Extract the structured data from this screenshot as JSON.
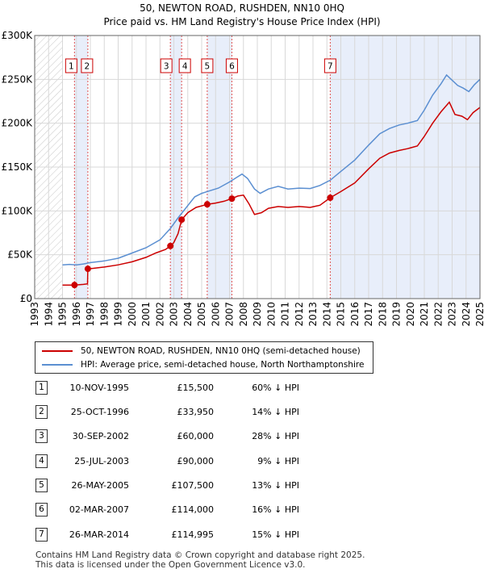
{
  "chart_data": {
    "type": "line",
    "title": "50, NEWTON ROAD, RUSHDEN, NN10 0HQ",
    "subtitle": "Price paid vs. HM Land Registry's House Price Index (HPI)",
    "xlabel": "",
    "ylabel": "",
    "xlim": [
      1993,
      2025
    ],
    "ylim": [
      0,
      300000
    ],
    "y_ticks": [
      0,
      50000,
      100000,
      150000,
      200000,
      250000,
      300000
    ],
    "y_tick_labels": [
      "£0",
      "£50K",
      "£100K",
      "£150K",
      "£200K",
      "£250K",
      "£300K"
    ],
    "x_ticks": [
      1993,
      1994,
      1995,
      1996,
      1997,
      1998,
      1999,
      2000,
      2001,
      2002,
      2003,
      2004,
      2005,
      2006,
      2007,
      2008,
      2009,
      2010,
      2011,
      2012,
      2013,
      2014,
      2015,
      2016,
      2017,
      2018,
      2019,
      2020,
      2021,
      2022,
      2023,
      2024,
      2025
    ],
    "x_tick_labels": [
      "1993",
      "1994",
      "1995",
      "1996",
      "1997",
      "1998",
      "1999",
      "2000",
      "2001",
      "2002",
      "2003",
      "2004",
      "2005",
      "2006",
      "2007",
      "2008",
      "2009",
      "2010",
      "2011",
      "2012",
      "2013",
      "2014",
      "2015",
      "2016",
      "2017",
      "2018",
      "2019",
      "2020",
      "2021",
      "2022",
      "2023",
      "2024",
      "2025"
    ],
    "grid": true,
    "hatched_ranges": [
      [
        1993,
        1995
      ]
    ],
    "series": [
      {
        "name": "50, NEWTON ROAD, RUSHDEN, NN10 0HQ (semi-detached house)",
        "color": "#cc0000",
        "points": [
          [
            1995.0,
            15500
          ],
          [
            1995.86,
            15500
          ],
          [
            1996.5,
            16200
          ],
          [
            1996.8,
            16800
          ],
          [
            1996.82,
            33950
          ],
          [
            1997.2,
            34500
          ],
          [
            1998,
            36000
          ],
          [
            1999,
            38500
          ],
          [
            2000,
            42000
          ],
          [
            2001,
            47000
          ],
          [
            2001.7,
            52000
          ],
          [
            2002.4,
            56000
          ],
          [
            2002.75,
            60000
          ],
          [
            2003.0,
            64000
          ],
          [
            2003.3,
            74000
          ],
          [
            2003.56,
            90000
          ],
          [
            2004.0,
            98000
          ],
          [
            2004.6,
            104000
          ],
          [
            2005.4,
            107500
          ],
          [
            2006.0,
            109000
          ],
          [
            2006.6,
            111000
          ],
          [
            2007.17,
            114000
          ],
          [
            2007.6,
            117000
          ],
          [
            2008.0,
            118000
          ],
          [
            2008.4,
            108000
          ],
          [
            2008.8,
            96000
          ],
          [
            2009.3,
            98000
          ],
          [
            2009.8,
            103000
          ],
          [
            2010.5,
            105000
          ],
          [
            2011.2,
            104000
          ],
          [
            2012.0,
            105000
          ],
          [
            2012.8,
            104000
          ],
          [
            2013.5,
            106500
          ],
          [
            2014.24,
            114995
          ],
          [
            2015.0,
            122000
          ],
          [
            2016.0,
            132000
          ],
          [
            2017.0,
            148000
          ],
          [
            2017.8,
            160000
          ],
          [
            2018.5,
            166000
          ],
          [
            2019.2,
            169000
          ],
          [
            2019.8,
            171000
          ],
          [
            2020.5,
            174000
          ],
          [
            2021.0,
            185000
          ],
          [
            2021.6,
            200000
          ],
          [
            2022.2,
            213000
          ],
          [
            2022.8,
            224000
          ],
          [
            2023.2,
            210000
          ],
          [
            2023.7,
            208000
          ],
          [
            2024.1,
            204000
          ],
          [
            2024.5,
            212000
          ],
          [
            2025.0,
            218000
          ]
        ]
      },
      {
        "name": "HPI: Average price, semi-detached house, North Northamptonshire",
        "color": "#5b8fd1",
        "points": [
          [
            1995.0,
            38500
          ],
          [
            1995.5,
            39000
          ],
          [
            1996.0,
            38500
          ],
          [
            1996.5,
            39500
          ],
          [
            1997.0,
            41000
          ],
          [
            1998.0,
            43000
          ],
          [
            1999.0,
            46000
          ],
          [
            2000.0,
            52000
          ],
          [
            2001.0,
            58000
          ],
          [
            2002.0,
            67000
          ],
          [
            2002.75,
            80000
          ],
          [
            2003.3,
            92000
          ],
          [
            2003.9,
            104000
          ],
          [
            2004.5,
            116000
          ],
          [
            2005.0,
            120000
          ],
          [
            2005.6,
            123000
          ],
          [
            2006.2,
            126000
          ],
          [
            2007.0,
            133000
          ],
          [
            2007.5,
            138000
          ],
          [
            2007.9,
            142000
          ],
          [
            2008.3,
            137000
          ],
          [
            2008.8,
            125000
          ],
          [
            2009.2,
            120000
          ],
          [
            2009.8,
            125000
          ],
          [
            2010.5,
            128000
          ],
          [
            2011.2,
            125000
          ],
          [
            2012.0,
            126000
          ],
          [
            2012.8,
            125500
          ],
          [
            2013.5,
            129000
          ],
          [
            2014.24,
            135000
          ],
          [
            2015.0,
            145000
          ],
          [
            2016.0,
            158000
          ],
          [
            2017.0,
            175000
          ],
          [
            2017.8,
            188000
          ],
          [
            2018.5,
            194000
          ],
          [
            2019.2,
            198000
          ],
          [
            2019.8,
            200000
          ],
          [
            2020.5,
            203000
          ],
          [
            2021.0,
            215000
          ],
          [
            2021.6,
            232000
          ],
          [
            2022.2,
            245000
          ],
          [
            2022.6,
            255000
          ],
          [
            2023.0,
            249000
          ],
          [
            2023.4,
            243000
          ],
          [
            2023.8,
            240000
          ],
          [
            2024.2,
            236000
          ],
          [
            2024.6,
            244000
          ],
          [
            2025.0,
            250000
          ]
        ]
      }
    ],
    "sales": [
      {
        "label": "1",
        "year": 1995.86,
        "price": 15500
      },
      {
        "label": "2",
        "year": 1996.82,
        "price": 33950
      },
      {
        "label": "3",
        "year": 2002.75,
        "price": 60000
      },
      {
        "label": "4",
        "year": 2003.56,
        "price": 90000
      },
      {
        "label": "5",
        "year": 2005.4,
        "price": 107500
      },
      {
        "label": "6",
        "year": 2007.17,
        "price": 114000
      },
      {
        "label": "7",
        "year": 2014.24,
        "price": 114995
      }
    ],
    "shaded_ranges": [
      [
        1995.86,
        1996.82
      ],
      [
        2002.75,
        2003.56
      ],
      [
        2005.4,
        2007.17
      ],
      [
        2014.24,
        2025
      ]
    ]
  },
  "legend": {
    "items": [
      {
        "label": "50, NEWTON ROAD, RUSHDEN, NN10 0HQ (semi-detached house)",
        "color": "#cc0000"
      },
      {
        "label": "HPI: Average price, semi-detached house, North Northamptonshire",
        "color": "#5b8fd1"
      }
    ]
  },
  "sales_table": {
    "rows": [
      {
        "num": "1",
        "date": "10-NOV-1995",
        "price": "£15,500",
        "hpi": "60% ↓ HPI"
      },
      {
        "num": "2",
        "date": "25-OCT-1996",
        "price": "£33,950",
        "hpi": "14% ↓ HPI"
      },
      {
        "num": "3",
        "date": "30-SEP-2002",
        "price": "£60,000",
        "hpi": "28% ↓ HPI"
      },
      {
        "num": "4",
        "date": "25-JUL-2003",
        "price": "£90,000",
        "hpi": "9% ↓ HPI"
      },
      {
        "num": "5",
        "date": "26-MAY-2005",
        "price": "£107,500",
        "hpi": "13% ↓ HPI"
      },
      {
        "num": "6",
        "date": "02-MAR-2007",
        "price": "£114,000",
        "hpi": "16% ↓ HPI"
      },
      {
        "num": "7",
        "date": "26-MAR-2014",
        "price": "£114,995",
        "hpi": "15% ↓ HPI"
      }
    ]
  },
  "footer": {
    "line1": "Contains HM Land Registry data © Crown copyright and database right 2025.",
    "line2": "This data is licensed under the Open Government Licence v3.0."
  }
}
